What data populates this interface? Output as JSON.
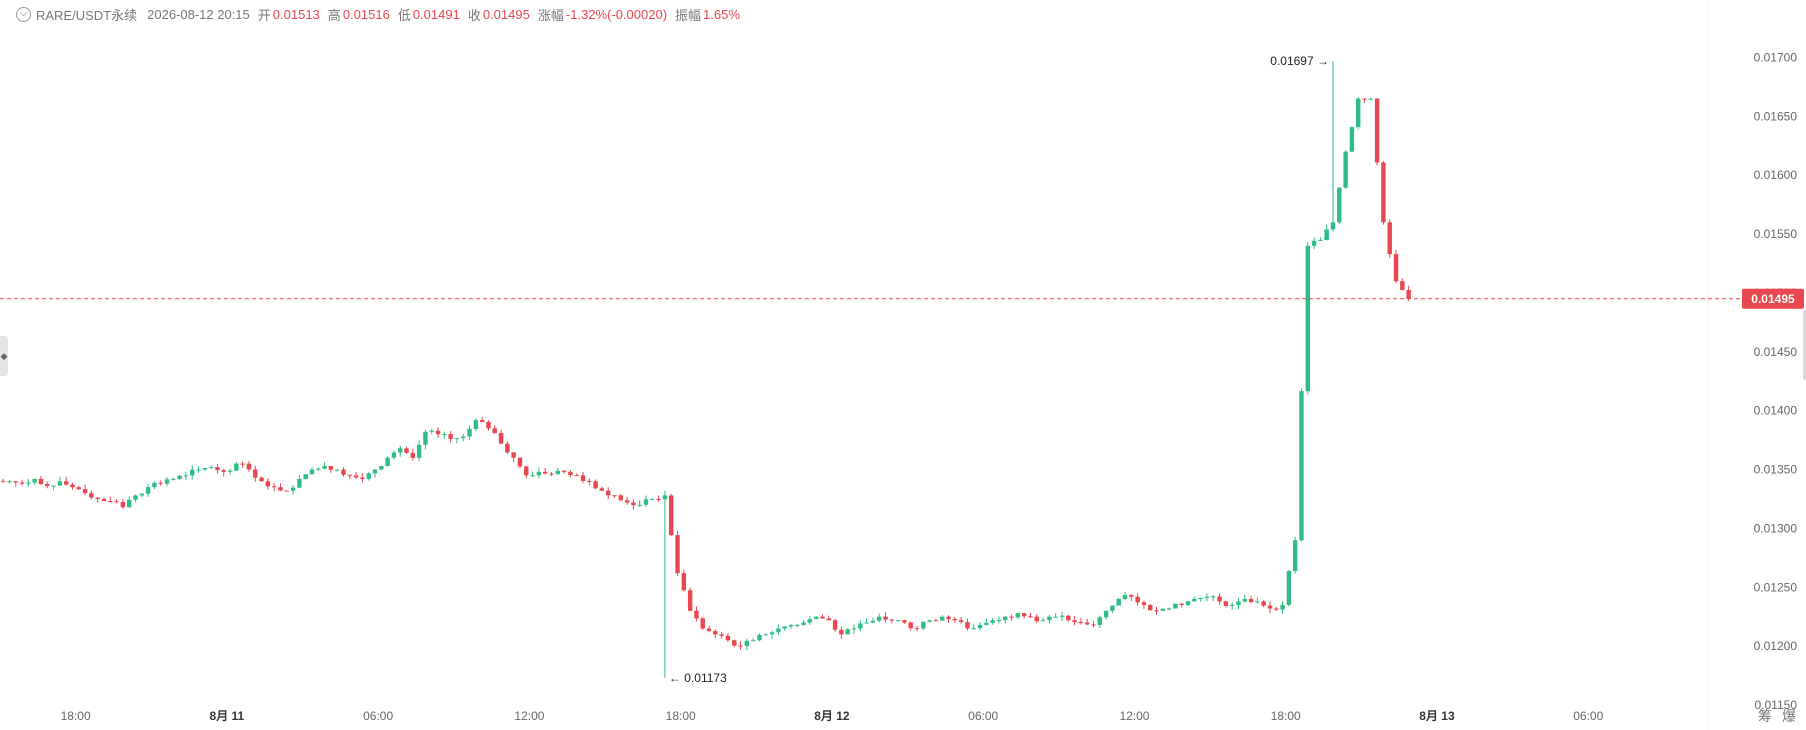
{
  "header": {
    "collapse_glyph": "⌵",
    "symbol": "RARE/USDT永续",
    "datetime": "2026-08-12 20:15",
    "open_label": "开",
    "open": "0.01513",
    "high_label": "高",
    "high": "0.01516",
    "low_label": "低",
    "low": "0.01491",
    "close_label": "收",
    "close": "0.01495",
    "change_label": "涨幅",
    "change": "-1.32%(-0.00020)",
    "amplitude_label": "振幅",
    "amplitude": "1.65%"
  },
  "colors": {
    "up": "#2ebd85",
    "down": "#e8474f",
    "text": "#333333",
    "axis_text": "#666666"
  },
  "left_handle_glyph": "◆",
  "corner_icons": [
    "筹",
    "爆"
  ],
  "chart_data": {
    "type": "candlestick",
    "title": "",
    "interval_minutes": 15,
    "y_axis_position": "right",
    "ylim": [
      0.0115,
      0.01725
    ],
    "ytick_labels": [
      "0.01700",
      "0.01650",
      "0.01600",
      "0.01550",
      "0.01500",
      "0.01450",
      "0.01400",
      "0.01350",
      "0.01300",
      "0.01250",
      "0.01200",
      "0.01150"
    ],
    "ytick_values": [
      0.017,
      0.0165,
      0.016,
      0.0155,
      0.015,
      0.0145,
      0.014,
      0.0135,
      0.013,
      0.0125,
      0.012,
      0.0115
    ],
    "xlim": [
      "2026-08-10 15:00",
      "2026-08-13 10:45"
    ],
    "xticks": [
      {
        "label": "18:00",
        "bold": false,
        "t": "2026-08-10 18:00"
      },
      {
        "label": "8月 11",
        "bold": true,
        "t": "2026-08-11 00:00"
      },
      {
        "label": "06:00",
        "bold": false,
        "t": "2026-08-11 06:00"
      },
      {
        "label": "12:00",
        "bold": false,
        "t": "2026-08-11 12:00"
      },
      {
        "label": "18:00",
        "bold": false,
        "t": "2026-08-11 18:00"
      },
      {
        "label": "8月 12",
        "bold": true,
        "t": "2026-08-12 00:00"
      },
      {
        "label": "06:00",
        "bold": false,
        "t": "2026-08-12 06:00"
      },
      {
        "label": "12:00",
        "bold": false,
        "t": "2026-08-12 12:00"
      },
      {
        "label": "18:00",
        "bold": false,
        "t": "2026-08-12 18:00"
      },
      {
        "label": "8月 13",
        "bold": true,
        "t": "2026-08-13 00:00"
      },
      {
        "label": "06:00",
        "bold": false,
        "t": "2026-08-13 06:00"
      }
    ],
    "current_price": {
      "label": "0.01495",
      "value": 0.01495
    },
    "annotations": [
      {
        "text": "0.01697",
        "value": 0.01697,
        "t": "2026-08-12 19:45",
        "side": "left"
      },
      {
        "text": "0.01173",
        "value": 0.01173,
        "t": "2026-08-11 17:15",
        "side": "right"
      }
    ],
    "start_time": "2026-08-10 15:00",
    "anchor_values": [
      0.0134,
      0.01338,
      0.01342,
      0.01336,
      0.0134,
      0.01335,
      0.0133,
      0.01325,
      0.01323,
      0.01318,
      0.01328,
      0.01335,
      0.01338,
      0.01342,
      0.01345,
      0.0135,
      0.01352,
      0.01348,
      0.01355,
      0.0135,
      0.0134,
      0.01335,
      0.01332,
      0.01342,
      0.0135,
      0.01353,
      0.0135,
      0.01345,
      0.01342,
      0.0135,
      0.0136,
      0.01368,
      0.0136,
      0.01382,
      0.0138,
      0.01376,
      0.01378,
      0.01392,
      0.01385,
      0.01372,
      0.0136,
      0.01345,
      0.01348,
      0.01346,
      0.01348,
      0.01345,
      0.0134,
      0.01332,
      0.01328,
      0.01322,
      0.0132,
      0.01325,
      0.01328,
      0.01262,
      0.0123,
      0.01215,
      0.0121,
      0.01205,
      0.012,
      0.01205,
      0.0121,
      0.01215,
      0.01218,
      0.0122,
      0.01225,
      0.01222,
      0.0121,
      0.01215,
      0.0122,
      0.01225,
      0.01222,
      0.0122,
      0.01215,
      0.01222,
      0.01225,
      0.01222,
      0.01215,
      0.01218,
      0.01222,
      0.01225,
      0.01228,
      0.01225,
      0.01222,
      0.01225,
      0.01222,
      0.0122,
      0.01218,
      0.0123,
      0.0124,
      0.01242,
      0.01235,
      0.0123,
      0.01232,
      0.01235,
      0.0124,
      0.01242,
      0.01238,
      0.01235,
      0.0124,
      0.01238,
      0.01232,
      0.01235,
      0.0129,
      0.0154,
      0.01545,
      0.0156,
      0.0162,
      0.01665,
      0.01665,
      0.0156,
      0.0151,
      0.01495
    ]
  }
}
